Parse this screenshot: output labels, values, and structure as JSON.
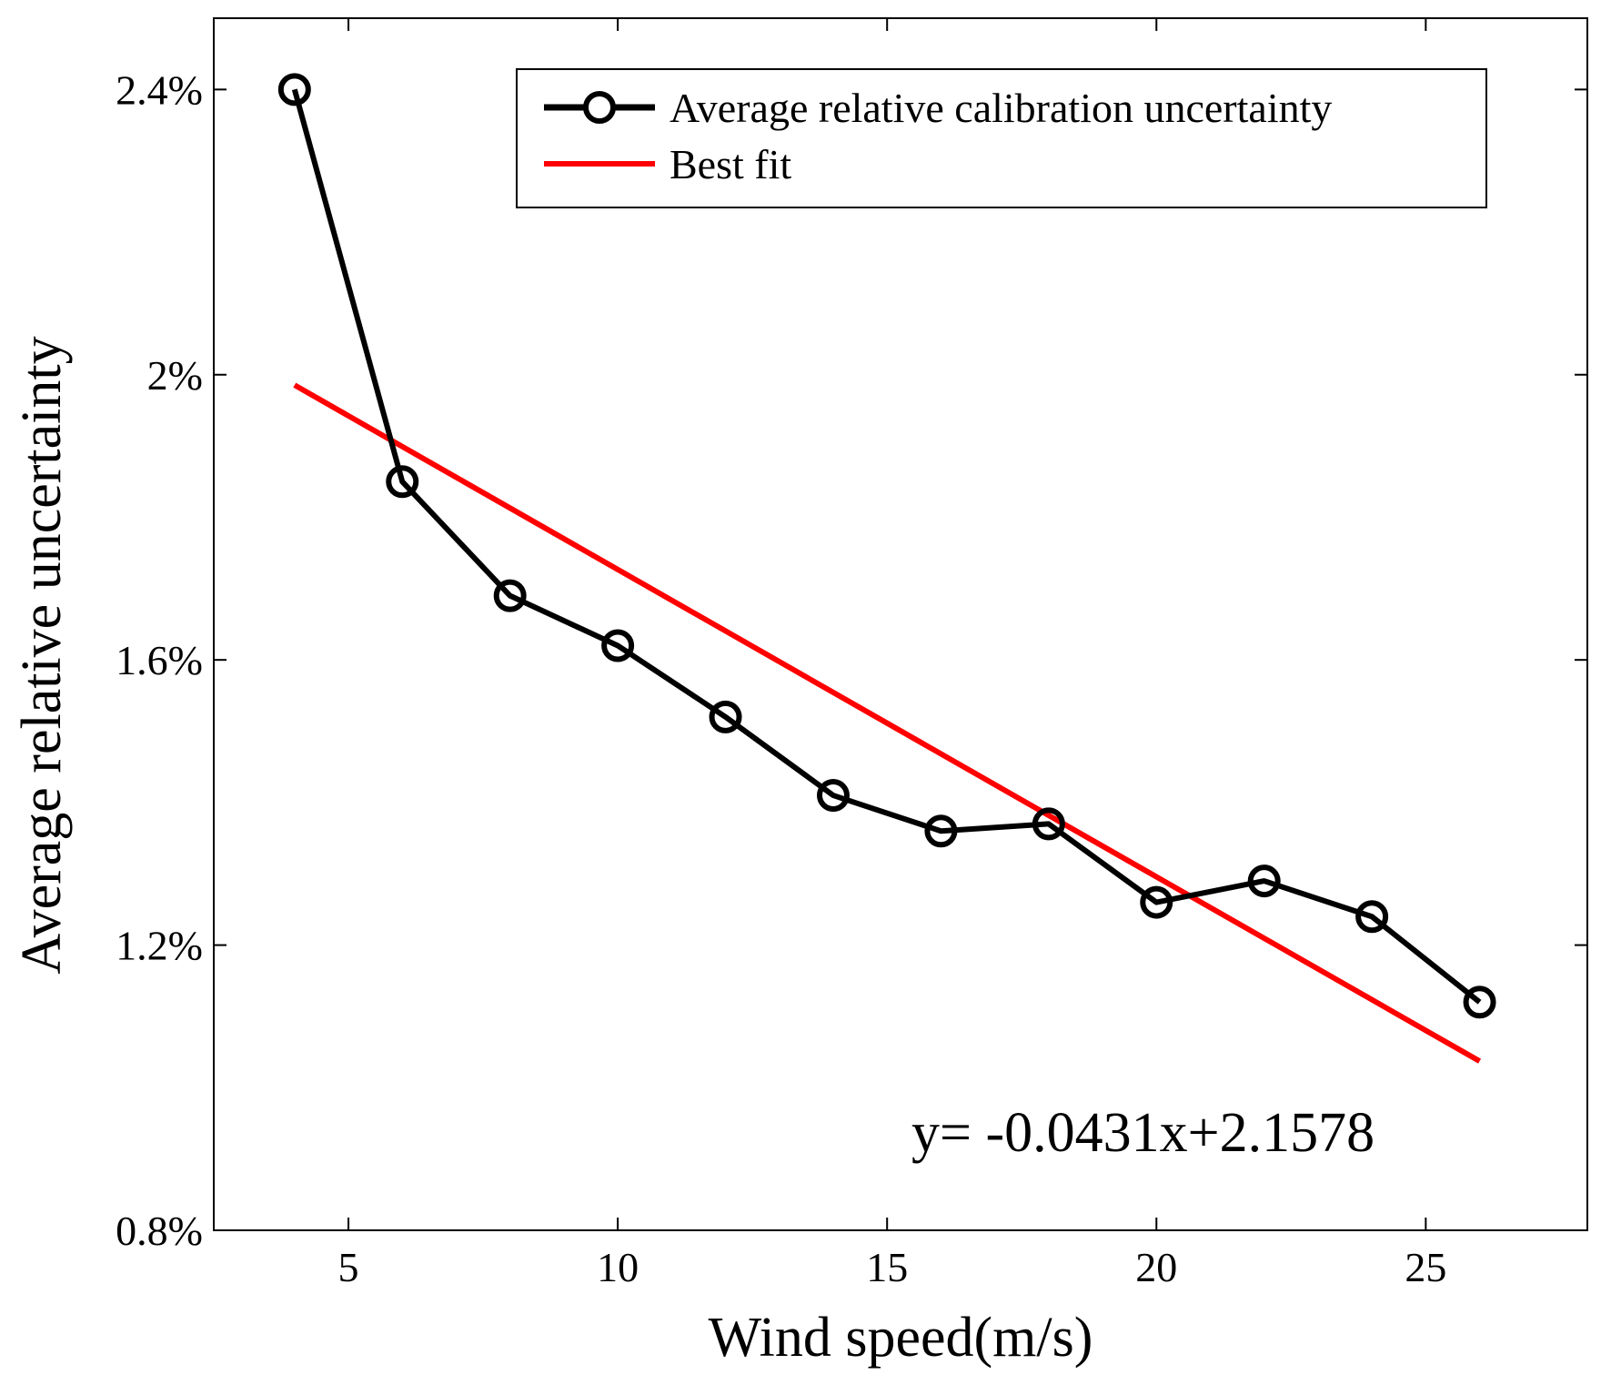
{
  "chart_data": {
    "type": "line",
    "title": "",
    "xlabel": "Wind speed(m/s)",
    "ylabel": "Average relative uncertainty",
    "xlim": [
      2.5,
      28.0
    ],
    "ylim": [
      0.8,
      2.5
    ],
    "xticks": [
      5,
      10,
      15,
      20,
      25
    ],
    "xtick_labels": [
      "5",
      "10",
      "15",
      "20",
      "25"
    ],
    "yticks": [
      0.8,
      1.2,
      1.6,
      2.0,
      2.4
    ],
    "ytick_labels": [
      "0.8%",
      "1.2%",
      "1.6%",
      "2%",
      "2.4%"
    ],
    "grid": false,
    "legend_position": "top-right",
    "series": [
      {
        "name": "Average relative calibration uncertainty",
        "color": "#000000",
        "marker": "circle",
        "x": [
          4,
          6,
          8,
          10,
          12,
          14,
          16,
          18,
          20,
          22,
          24,
          26
        ],
        "y": [
          2.4,
          1.85,
          1.69,
          1.62,
          1.52,
          1.41,
          1.36,
          1.37,
          1.26,
          1.29,
          1.24,
          1.12
        ]
      },
      {
        "name": "Best fit",
        "color": "#ff0000",
        "marker": "none",
        "slope": -0.0431,
        "intercept": 2.1578,
        "x": [
          4,
          26
        ],
        "y": [
          1.9854,
          1.0372
        ]
      }
    ],
    "annotation": "y= -0.0431x+2.1578"
  }
}
